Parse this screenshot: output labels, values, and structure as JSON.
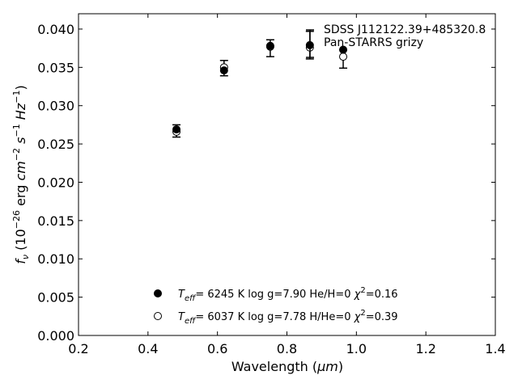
{
  "chart_data": {
    "type": "scatter",
    "xlabel_main": "Wavelength (",
    "xlabel_unit": "μm",
    "xlabel_close": ")",
    "ylabel_f": "f",
    "ylabel_sub": "ν",
    "ylabel_open": " (10",
    "ylabel_exp": "−26",
    "ylabel_erg": " erg ",
    "ylabel_cm": "cm",
    "ylabel_cm_exp": "−2",
    "ylabel_s": "s",
    "ylabel_s_exp": "−1",
    "ylabel_hz": "Hz",
    "ylabel_hz_exp": "−1",
    "ylabel_close": ")",
    "xlim": [
      0.2,
      1.4
    ],
    "ylim": [
      0.0,
      0.042
    ],
    "xticks": [
      "0.2",
      "0.4",
      "0.6",
      "0.8",
      "1.0",
      "1.2",
      "1.4"
    ],
    "yticks": [
      "0.000",
      "0.005",
      "0.010",
      "0.015",
      "0.020",
      "0.025",
      "0.030",
      "0.035",
      "0.040"
    ],
    "observed": {
      "name_line1": "SDSS J112122.39+485320.8",
      "name_line2": "Pan-STARRS grizy",
      "x": [
        0.482,
        0.619,
        0.752,
        0.866,
        0.962
      ],
      "y": [
        0.0267,
        0.0349,
        0.0375,
        0.0379,
        0.0361
      ],
      "yerr": [
        0.0008,
        0.001,
        0.0011,
        0.0018,
        0.0012
      ],
      "color": "#000000"
    },
    "model_1": {
      "label_teff": "T",
      "label_teff_sub": "eff",
      "label_rest": "=  6245 K  log g=7.90  He/H=0  ",
      "label_chi": "χ",
      "label_chi_exp": "2",
      "label_chi_val": "=0.16",
      "marker": "filled",
      "x": [
        0.482,
        0.619,
        0.752,
        0.866,
        0.962
      ],
      "y": [
        0.0269,
        0.0346,
        0.0378,
        0.0379,
        0.0373
      ]
    },
    "model_2": {
      "label_teff": "T",
      "label_teff_sub": "eff",
      "label_rest": "=  6037 K  log g=7.78  H/He=0  ",
      "label_chi": "χ",
      "label_chi_exp": "2",
      "label_chi_val": "=0.39",
      "marker": "open",
      "x": [
        0.482,
        0.619,
        0.752,
        0.866,
        0.962
      ],
      "y": [
        0.0266,
        0.035,
        0.0377,
        0.0376,
        0.0364
      ]
    }
  }
}
